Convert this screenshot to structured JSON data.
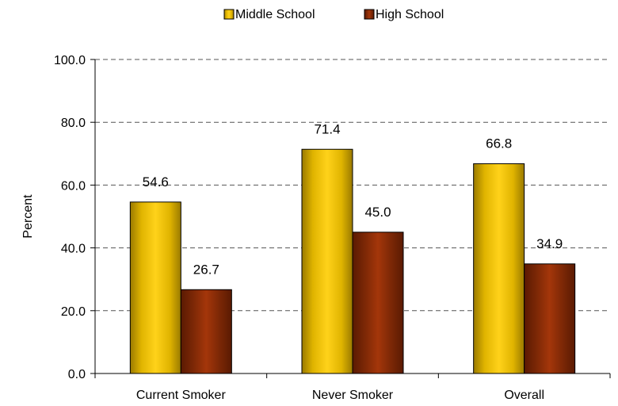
{
  "chart_data": {
    "type": "bar",
    "categories": [
      "Current Smoker",
      "Never Smoker",
      "Overall"
    ],
    "series": [
      {
        "name": "Middle School",
        "values": [
          54.6,
          71.4,
          66.8
        ],
        "labels": [
          "54.6",
          "71.4",
          "66.8"
        ]
      },
      {
        "name": "High School",
        "values": [
          26.7,
          45.0,
          34.9
        ],
        "labels": [
          "26.7",
          "45.0",
          "34.9"
        ]
      }
    ],
    "title": "",
    "xlabel": "",
    "ylabel": "Percent",
    "ylim": [
      0,
      100
    ],
    "yticks": [
      "0.0",
      "20.0",
      "40.0",
      "60.0",
      "80.0",
      "100.0"
    ],
    "grid": true,
    "legend_position": "top-center",
    "colors": {
      "Middle School": "#f2c200",
      "High School": "#8a2a08",
      "axis": "#000000",
      "grid": "#555555"
    }
  }
}
